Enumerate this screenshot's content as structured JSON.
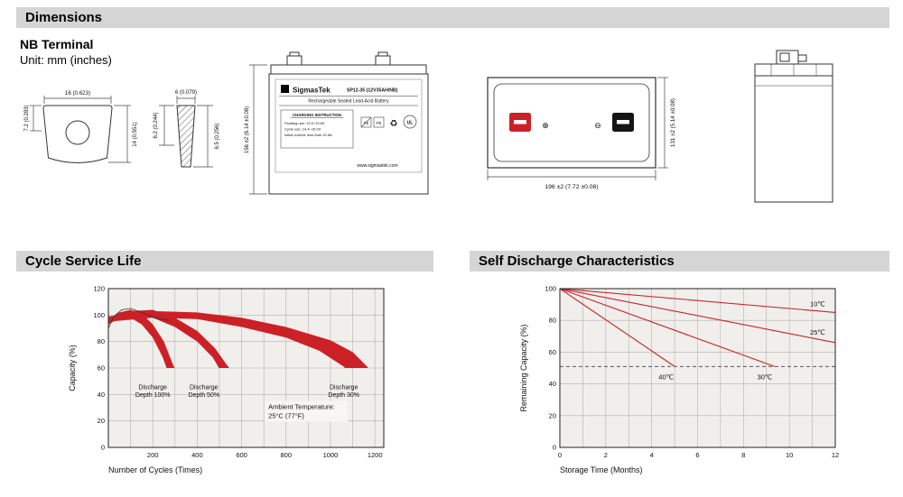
{
  "accent_red": "#cc2027",
  "header_gray": "#d5d5d5",
  "sections": {
    "dimensions": "Dimensions",
    "cycle": "Cycle Service Life",
    "self_discharge": "Self Discharge Characteristics"
  },
  "dimensions_block": {
    "subtitle": "NB Terminal",
    "unit": "Unit: mm (inches)",
    "terminal_front": {
      "width": "16 (0.623)",
      "height_small": "7.2 (0.283)",
      "height_full": "14 (0.551)"
    },
    "terminal_section": {
      "width": "6 (0.079)",
      "bore": "6.2 (0.244)",
      "depth": "6.5 (0.256)"
    },
    "front_view": {
      "height": "156 ±2 (6.14 ±0.08)",
      "label": {
        "logo_glyph": "Σ",
        "brand": "SigmasTek",
        "model": "SP12-35 (12V35AH/NB)",
        "type": "Rechargeable Sealed Lead-Acid Battery",
        "charging_title": "CHARGING INSTRUCTION",
        "charging_lines": [
          "Floating use: 13.5~13.8V",
          "Cycle use: 14.4~15.0V",
          "Initial current: less than 10.5A"
        ],
        "pb_label": "Pb",
        "recycle_glyph": "♻",
        "ul_label": "UL",
        "website": "www.sigmastek.com"
      }
    },
    "top_view": {
      "width": "196 ±2 (7.72 ±0.08)",
      "depth": "131 ±2 (5.14 ±0.08)",
      "plus": "⊕",
      "minus": "⊖"
    }
  },
  "chart_data": [
    {
      "id": "cycle-chart",
      "type": "area",
      "title": "Cycle Service Life",
      "xlabel": "Number of Cycles (Times)",
      "ylabel": "Capacity (%)",
      "xlim": [
        0,
        1240
      ],
      "ylim": [
        0,
        120
      ],
      "xticks": [
        200,
        400,
        600,
        800,
        1000,
        1200
      ],
      "yticks": [
        0,
        20,
        40,
        60,
        80,
        100,
        120
      ],
      "xgrid": 100,
      "ygrid": 20,
      "grid_on": true,
      "line_color": "#cc2027",
      "annotation": {
        "lines": [
          "Ambient Temperature:",
          "25°C (77°F)"
        ],
        "x": 720,
        "y": 29
      },
      "bands": [
        {
          "label_lines": [
            "Discharge",
            "Depth 100%"
          ],
          "label_x": 200,
          "label_y": 44,
          "top": [
            [
              0,
              97
            ],
            [
              50,
              102
            ],
            [
              100,
              104
            ],
            [
              150,
              101
            ],
            [
              200,
              93
            ],
            [
              250,
              80
            ],
            [
              290,
              63
            ],
            [
              298,
              60
            ]
          ],
          "bottom": [
            [
              0,
              93
            ],
            [
              50,
              98
            ],
            [
              100,
              98
            ],
            [
              150,
              93
            ],
            [
              200,
              83
            ],
            [
              245,
              68
            ],
            [
              262,
              60
            ]
          ]
        },
        {
          "label_lines": [
            "Discharge",
            "Depth 50%"
          ],
          "label_x": 430,
          "label_y": 44,
          "top": [
            [
              0,
              98
            ],
            [
              100,
              103
            ],
            [
              200,
              104
            ],
            [
              300,
              98
            ],
            [
              400,
              88
            ],
            [
              480,
              75
            ],
            [
              535,
              62
            ],
            [
              545,
              60
            ]
          ],
          "bottom": [
            [
              0,
              94
            ],
            [
              100,
              99
            ],
            [
              200,
              98
            ],
            [
              300,
              91
            ],
            [
              400,
              80
            ],
            [
              470,
              68
            ],
            [
              498,
              60
            ]
          ]
        },
        {
          "label_lines": [
            "Discharge",
            "Depth 30%"
          ],
          "label_x": 1060,
          "label_y": 44,
          "top": [
            [
              0,
              99
            ],
            [
              200,
              103
            ],
            [
              400,
              102
            ],
            [
              600,
              98
            ],
            [
              800,
              91
            ],
            [
              1000,
              81
            ],
            [
              1100,
              72
            ],
            [
              1160,
              62
            ],
            [
              1170,
              60
            ]
          ],
          "bottom": [
            [
              0,
              95
            ],
            [
              200,
              98
            ],
            [
              400,
              97
            ],
            [
              600,
              91
            ],
            [
              800,
              83
            ],
            [
              950,
              73
            ],
            [
              1060,
              61
            ],
            [
              1065,
              60
            ]
          ]
        }
      ],
      "envelope": [
        [
          0,
          90
        ],
        [
          25,
          99
        ],
        [
          60,
          104
        ],
        [
          100,
          105
        ],
        [
          150,
          102
        ],
        [
          210,
          98
        ],
        [
          270,
          96
        ]
      ]
    },
    {
      "id": "self-discharge-chart",
      "type": "line",
      "title": "Self Discharge Characteristics",
      "xlabel": "Storage Time (Months)",
      "ylabel": "Remaining Capacity (%)",
      "xlim": [
        0,
        12
      ],
      "ylim": [
        0,
        100
      ],
      "xticks": [
        0,
        2,
        4,
        6,
        8,
        10,
        12
      ],
      "yticks": [
        0,
        20,
        40,
        60,
        80,
        100
      ],
      "xgrid": 1,
      "ygrid": 20,
      "grid_on": true,
      "line_color": "#cc2027",
      "dashed_y": 51,
      "lines": [
        {
          "label": "10℃",
          "label_x": 10.9,
          "label_y": 89,
          "points": [
            [
              0,
              100
            ],
            [
              12,
              85
            ]
          ]
        },
        {
          "label": "25℃",
          "label_x": 10.9,
          "label_y": 71,
          "points": [
            [
              0,
              100
            ],
            [
              12,
              66
            ]
          ]
        },
        {
          "label": "30℃",
          "label_x": 8.6,
          "label_y": 43,
          "points": [
            [
              0,
              100
            ],
            [
              9.35,
              51
            ]
          ]
        },
        {
          "label": "40℃",
          "label_x": 4.3,
          "label_y": 43,
          "points": [
            [
              0,
              100
            ],
            [
              5.0,
              51
            ]
          ]
        }
      ]
    }
  ]
}
